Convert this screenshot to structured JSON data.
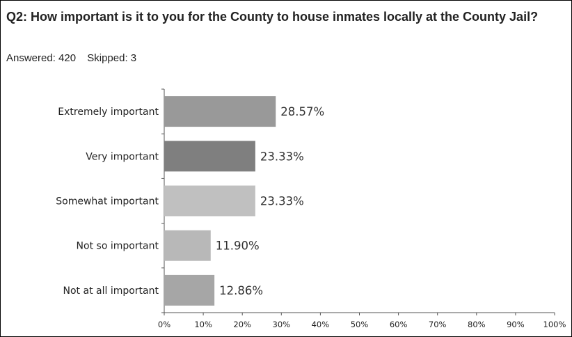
{
  "question": {
    "title": "Q2: How important is it to you for the County to house inmates locally at the County Jail?",
    "answered_label": "Answered: 420",
    "skipped_label": "Skipped: 3"
  },
  "chart_data": {
    "type": "bar",
    "orientation": "horizontal",
    "categories": [
      "Extremely important",
      "Very important",
      "Somewhat important",
      "Not so important",
      "Not at all important"
    ],
    "values": [
      28.57,
      23.33,
      23.33,
      11.9,
      12.86
    ],
    "value_labels": [
      "28.57%",
      "23.33%",
      "23.33%",
      "11.90%",
      "12.86%"
    ],
    "colors": [
      "#999999",
      "#7f7f7f",
      "#c0c0c0",
      "#b8b8b8",
      "#a6a6a6"
    ],
    "xlim": [
      0,
      100
    ],
    "xticks": [
      "0%",
      "10%",
      "20%",
      "30%",
      "40%",
      "50%",
      "60%",
      "70%",
      "80%",
      "90%",
      "100%"
    ],
    "grid": false,
    "legend": "none"
  }
}
